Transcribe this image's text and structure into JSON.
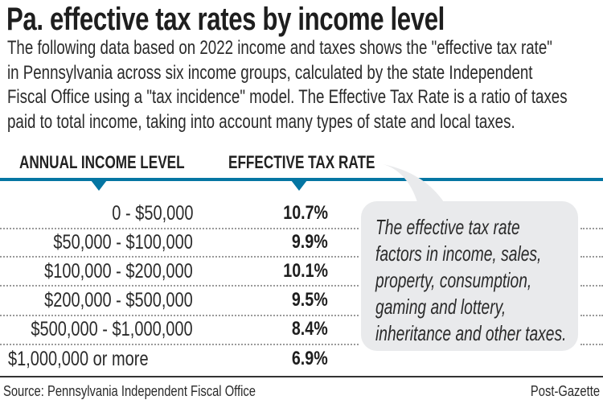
{
  "title": "Pa. effective tax rates by income level",
  "intro_lines": [
    "The following data based on 2022 income and taxes shows the \"effective tax rate\"",
    "in Pennsylvania across six income groups, calculated by the state Independent",
    "Fiscal Office using a \"tax incidence\" model. The Effective Tax Rate is a ratio of taxes",
    "paid to total income, taking into account many types of state and local taxes."
  ],
  "colors": {
    "accent": "#0576a3",
    "bubble": "#e9eaec"
  },
  "chart_data": {
    "type": "table",
    "title": "Pa. effective tax rates by income level",
    "columns": [
      "ANNUAL INCOME LEVEL",
      "EFFECTIVE TAX RATE"
    ],
    "rows": [
      {
        "income": "0 - $50,000",
        "rate": "10.7%",
        "value": 10.7
      },
      {
        "income": "$50,000 - $100,000",
        "rate": "9.9%",
        "value": 9.9
      },
      {
        "income": "$100,000 - $200,000",
        "rate": "10.1%",
        "value": 10.1
      },
      {
        "income": "$200,000 - $500,000",
        "rate": "9.5%",
        "value": 9.5
      },
      {
        "income": "$500,000 - $1,000,000",
        "rate": "8.4%",
        "value": 8.4
      },
      {
        "income": "$1,000,000  or more",
        "rate": "6.9%",
        "value": 6.9
      }
    ]
  },
  "callout_lines": [
    "The effective tax rate",
    "factors in income, sales,",
    "property, consumption,",
    "gaming and lottery,",
    "inheritance and other taxes."
  ],
  "footer": {
    "source": "Source: Pennsylvania Independent Fiscal Office",
    "credit": "Post-Gazette"
  }
}
